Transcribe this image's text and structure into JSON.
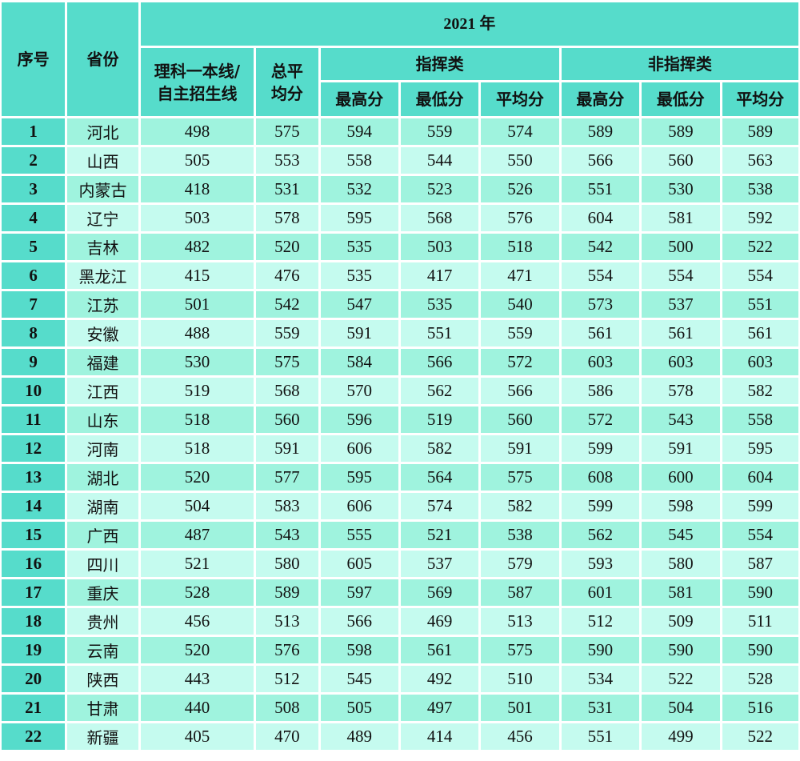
{
  "header": {
    "col_index": "序号",
    "col_province": "省份",
    "year": "2021 年",
    "baseline": "理科一本线/自主招生线",
    "baseline_line1": "理科一本线/",
    "baseline_line2": "自主招生线",
    "total_avg_line1": "总平",
    "total_avg_line2": "均分",
    "group_command": "指挥类",
    "group_noncommand": "非指挥类",
    "max": "最高分",
    "min": "最低分",
    "avg": "平均分"
  },
  "rows": [
    {
      "no": "1",
      "province": "河北",
      "baseline": "498",
      "total_avg": "575",
      "cmd_max": "594",
      "cmd_min": "559",
      "cmd_avg": "574",
      "non_max": "589",
      "non_min": "589",
      "non_avg": "589"
    },
    {
      "no": "2",
      "province": "山西",
      "baseline": "505",
      "total_avg": "553",
      "cmd_max": "558",
      "cmd_min": "544",
      "cmd_avg": "550",
      "non_max": "566",
      "non_min": "560",
      "non_avg": "563"
    },
    {
      "no": "3",
      "province": "内蒙古",
      "baseline": "418",
      "total_avg": "531",
      "cmd_max": "532",
      "cmd_min": "523",
      "cmd_avg": "526",
      "non_max": "551",
      "non_min": "530",
      "non_avg": "538"
    },
    {
      "no": "4",
      "province": "辽宁",
      "baseline": "503",
      "total_avg": "578",
      "cmd_max": "595",
      "cmd_min": "568",
      "cmd_avg": "576",
      "non_max": "604",
      "non_min": "581",
      "non_avg": "592"
    },
    {
      "no": "5",
      "province": "吉林",
      "baseline": "482",
      "total_avg": "520",
      "cmd_max": "535",
      "cmd_min": "503",
      "cmd_avg": "518",
      "non_max": "542",
      "non_min": "500",
      "non_avg": "522"
    },
    {
      "no": "6",
      "province": "黑龙江",
      "baseline": "415",
      "total_avg": "476",
      "cmd_max": "535",
      "cmd_min": "417",
      "cmd_avg": "471",
      "non_max": "554",
      "non_min": "554",
      "non_avg": "554"
    },
    {
      "no": "7",
      "province": "江苏",
      "baseline": "501",
      "total_avg": "542",
      "cmd_max": "547",
      "cmd_min": "535",
      "cmd_avg": "540",
      "non_max": "573",
      "non_min": "537",
      "non_avg": "551"
    },
    {
      "no": "8",
      "province": "安徽",
      "baseline": "488",
      "total_avg": "559",
      "cmd_max": "591",
      "cmd_min": "551",
      "cmd_avg": "559",
      "non_max": "561",
      "non_min": "561",
      "non_avg": "561"
    },
    {
      "no": "9",
      "province": "福建",
      "baseline": "530",
      "total_avg": "575",
      "cmd_max": "584",
      "cmd_min": "566",
      "cmd_avg": "572",
      "non_max": "603",
      "non_min": "603",
      "non_avg": "603"
    },
    {
      "no": "10",
      "province": "江西",
      "baseline": "519",
      "total_avg": "568",
      "cmd_max": "570",
      "cmd_min": "562",
      "cmd_avg": "566",
      "non_max": "586",
      "non_min": "578",
      "non_avg": "582"
    },
    {
      "no": "11",
      "province": "山东",
      "baseline": "518",
      "total_avg": "560",
      "cmd_max": "596",
      "cmd_min": "519",
      "cmd_avg": "560",
      "non_max": "572",
      "non_min": "543",
      "non_avg": "558"
    },
    {
      "no": "12",
      "province": "河南",
      "baseline": "518",
      "total_avg": "591",
      "cmd_max": "606",
      "cmd_min": "582",
      "cmd_avg": "591",
      "non_max": "599",
      "non_min": "591",
      "non_avg": "595"
    },
    {
      "no": "13",
      "province": "湖北",
      "baseline": "520",
      "total_avg": "577",
      "cmd_max": "595",
      "cmd_min": "564",
      "cmd_avg": "575",
      "non_max": "608",
      "non_min": "600",
      "non_avg": "604"
    },
    {
      "no": "14",
      "province": "湖南",
      "baseline": "504",
      "total_avg": "583",
      "cmd_max": "606",
      "cmd_min": "574",
      "cmd_avg": "582",
      "non_max": "599",
      "non_min": "598",
      "non_avg": "599"
    },
    {
      "no": "15",
      "province": "广西",
      "baseline": "487",
      "total_avg": "543",
      "cmd_max": "555",
      "cmd_min": "521",
      "cmd_avg": "538",
      "non_max": "562",
      "non_min": "545",
      "non_avg": "554"
    },
    {
      "no": "16",
      "province": "四川",
      "baseline": "521",
      "total_avg": "580",
      "cmd_max": "605",
      "cmd_min": "537",
      "cmd_avg": "579",
      "non_max": "593",
      "non_min": "580",
      "non_avg": "587"
    },
    {
      "no": "17",
      "province": "重庆",
      "baseline": "528",
      "total_avg": "589",
      "cmd_max": "597",
      "cmd_min": "569",
      "cmd_avg": "587",
      "non_max": "601",
      "non_min": "581",
      "non_avg": "590"
    },
    {
      "no": "18",
      "province": "贵州",
      "baseline": "456",
      "total_avg": "513",
      "cmd_max": "566",
      "cmd_min": "469",
      "cmd_avg": "513",
      "non_max": "512",
      "non_min": "509",
      "non_avg": "511"
    },
    {
      "no": "19",
      "province": "云南",
      "baseline": "520",
      "total_avg": "576",
      "cmd_max": "598",
      "cmd_min": "561",
      "cmd_avg": "575",
      "non_max": "590",
      "non_min": "590",
      "non_avg": "590"
    },
    {
      "no": "20",
      "province": "陕西",
      "baseline": "443",
      "total_avg": "512",
      "cmd_max": "545",
      "cmd_min": "492",
      "cmd_avg": "510",
      "non_max": "534",
      "non_min": "522",
      "non_avg": "528"
    },
    {
      "no": "21",
      "province": "甘肃",
      "baseline": "440",
      "total_avg": "508",
      "cmd_max": "505",
      "cmd_min": "497",
      "cmd_avg": "501",
      "non_max": "531",
      "non_min": "504",
      "non_avg": "516"
    },
    {
      "no": "22",
      "province": "新疆",
      "baseline": "405",
      "total_avg": "470",
      "cmd_max": "489",
      "cmd_min": "414",
      "cmd_avg": "456",
      "non_max": "551",
      "non_min": "499",
      "non_avg": "522"
    }
  ],
  "colors": {
    "header_bg": "#56dccb",
    "row_odd_bg": "#9ff3de",
    "row_even_bg": "#c5fbef"
  }
}
